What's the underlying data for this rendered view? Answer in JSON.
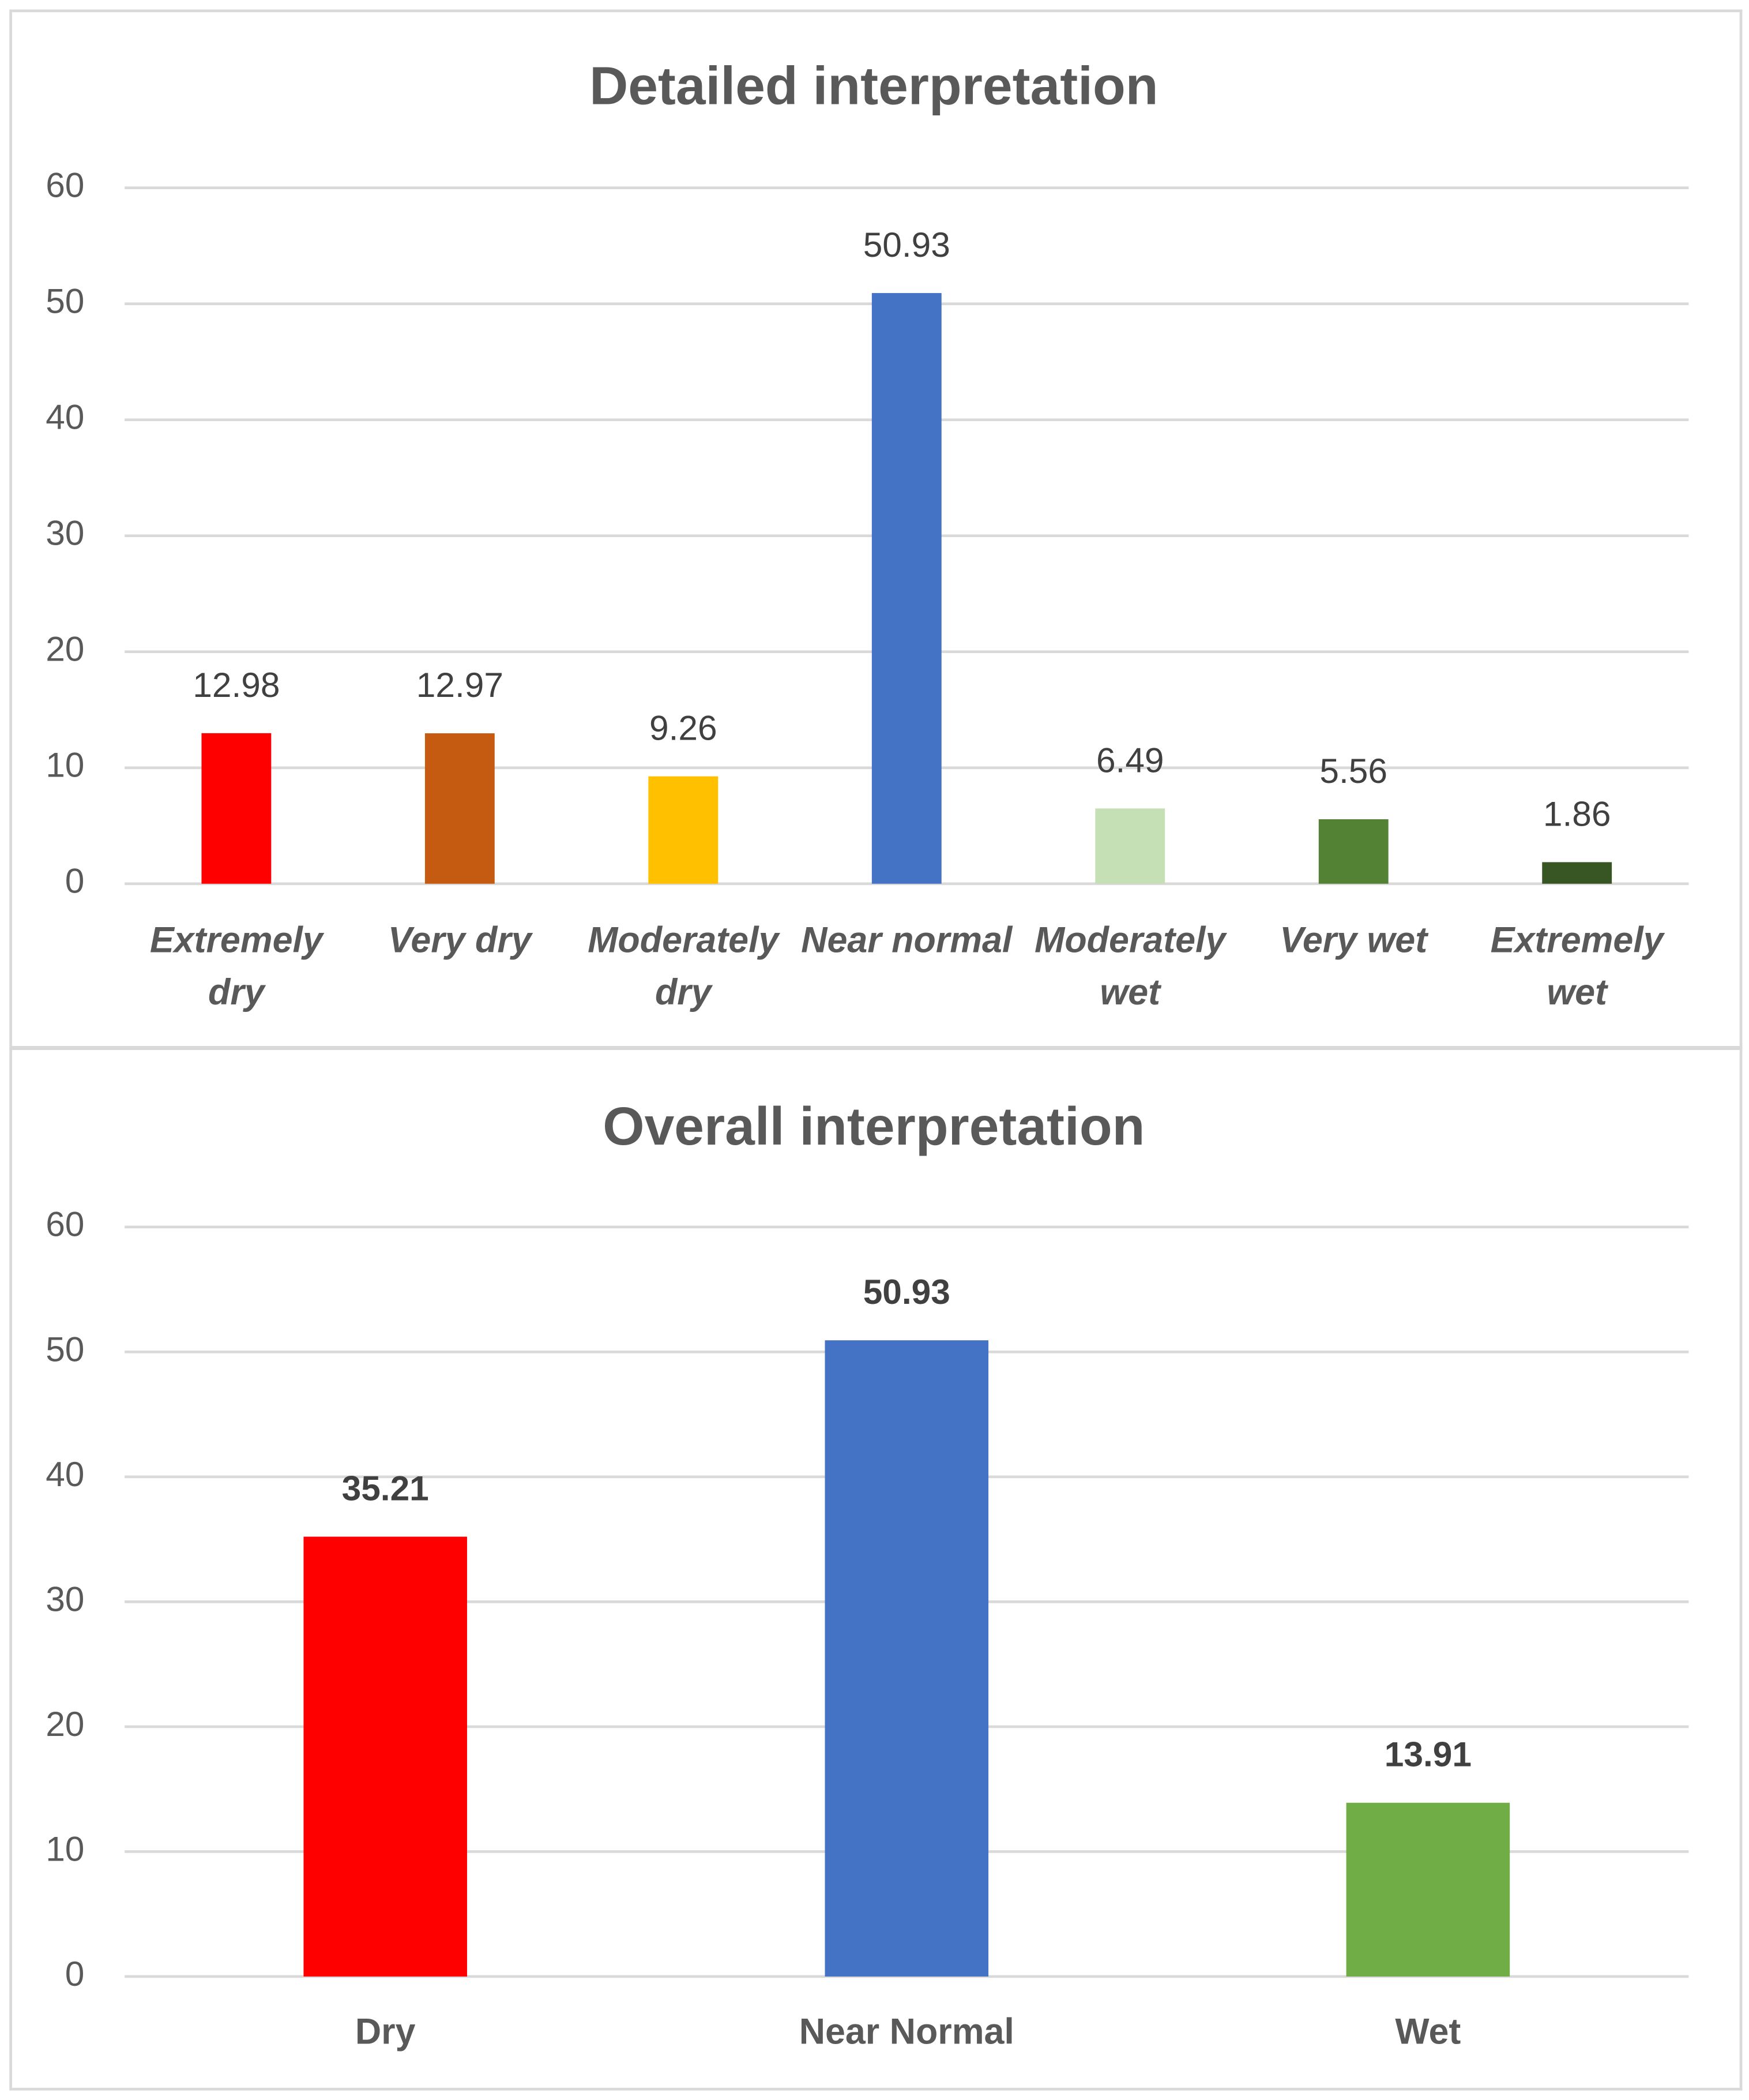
{
  "chart_data": [
    {
      "type": "bar",
      "title": "Detailed interpretation",
      "categories": [
        "Extremely dry",
        "Very dry",
        "Moderately dry",
        "Near normal",
        "Moderately wet",
        "Very wet",
        "Extremely wet"
      ],
      "values": [
        12.98,
        12.97,
        9.26,
        50.93,
        6.49,
        5.56,
        1.86
      ],
      "colors": [
        "#ff0000",
        "#c55a11",
        "#ffc000",
        "#4472c4",
        "#c5e0b4",
        "#548235",
        "#375623"
      ],
      "ylim": [
        0,
        60
      ],
      "yticks": [
        0,
        10,
        20,
        30,
        40,
        50,
        60
      ],
      "grid": true
    },
    {
      "type": "bar",
      "title": "Overall interpretation",
      "categories": [
        "Dry",
        "Near Normal",
        "Wet"
      ],
      "values": [
        35.21,
        50.93,
        13.91
      ],
      "colors": [
        "#ff0000",
        "#4472c4",
        "#70ad47"
      ],
      "ylim": [
        0,
        60
      ],
      "yticks": [
        0,
        10,
        20,
        30,
        40,
        50,
        60
      ],
      "grid": true
    }
  ]
}
